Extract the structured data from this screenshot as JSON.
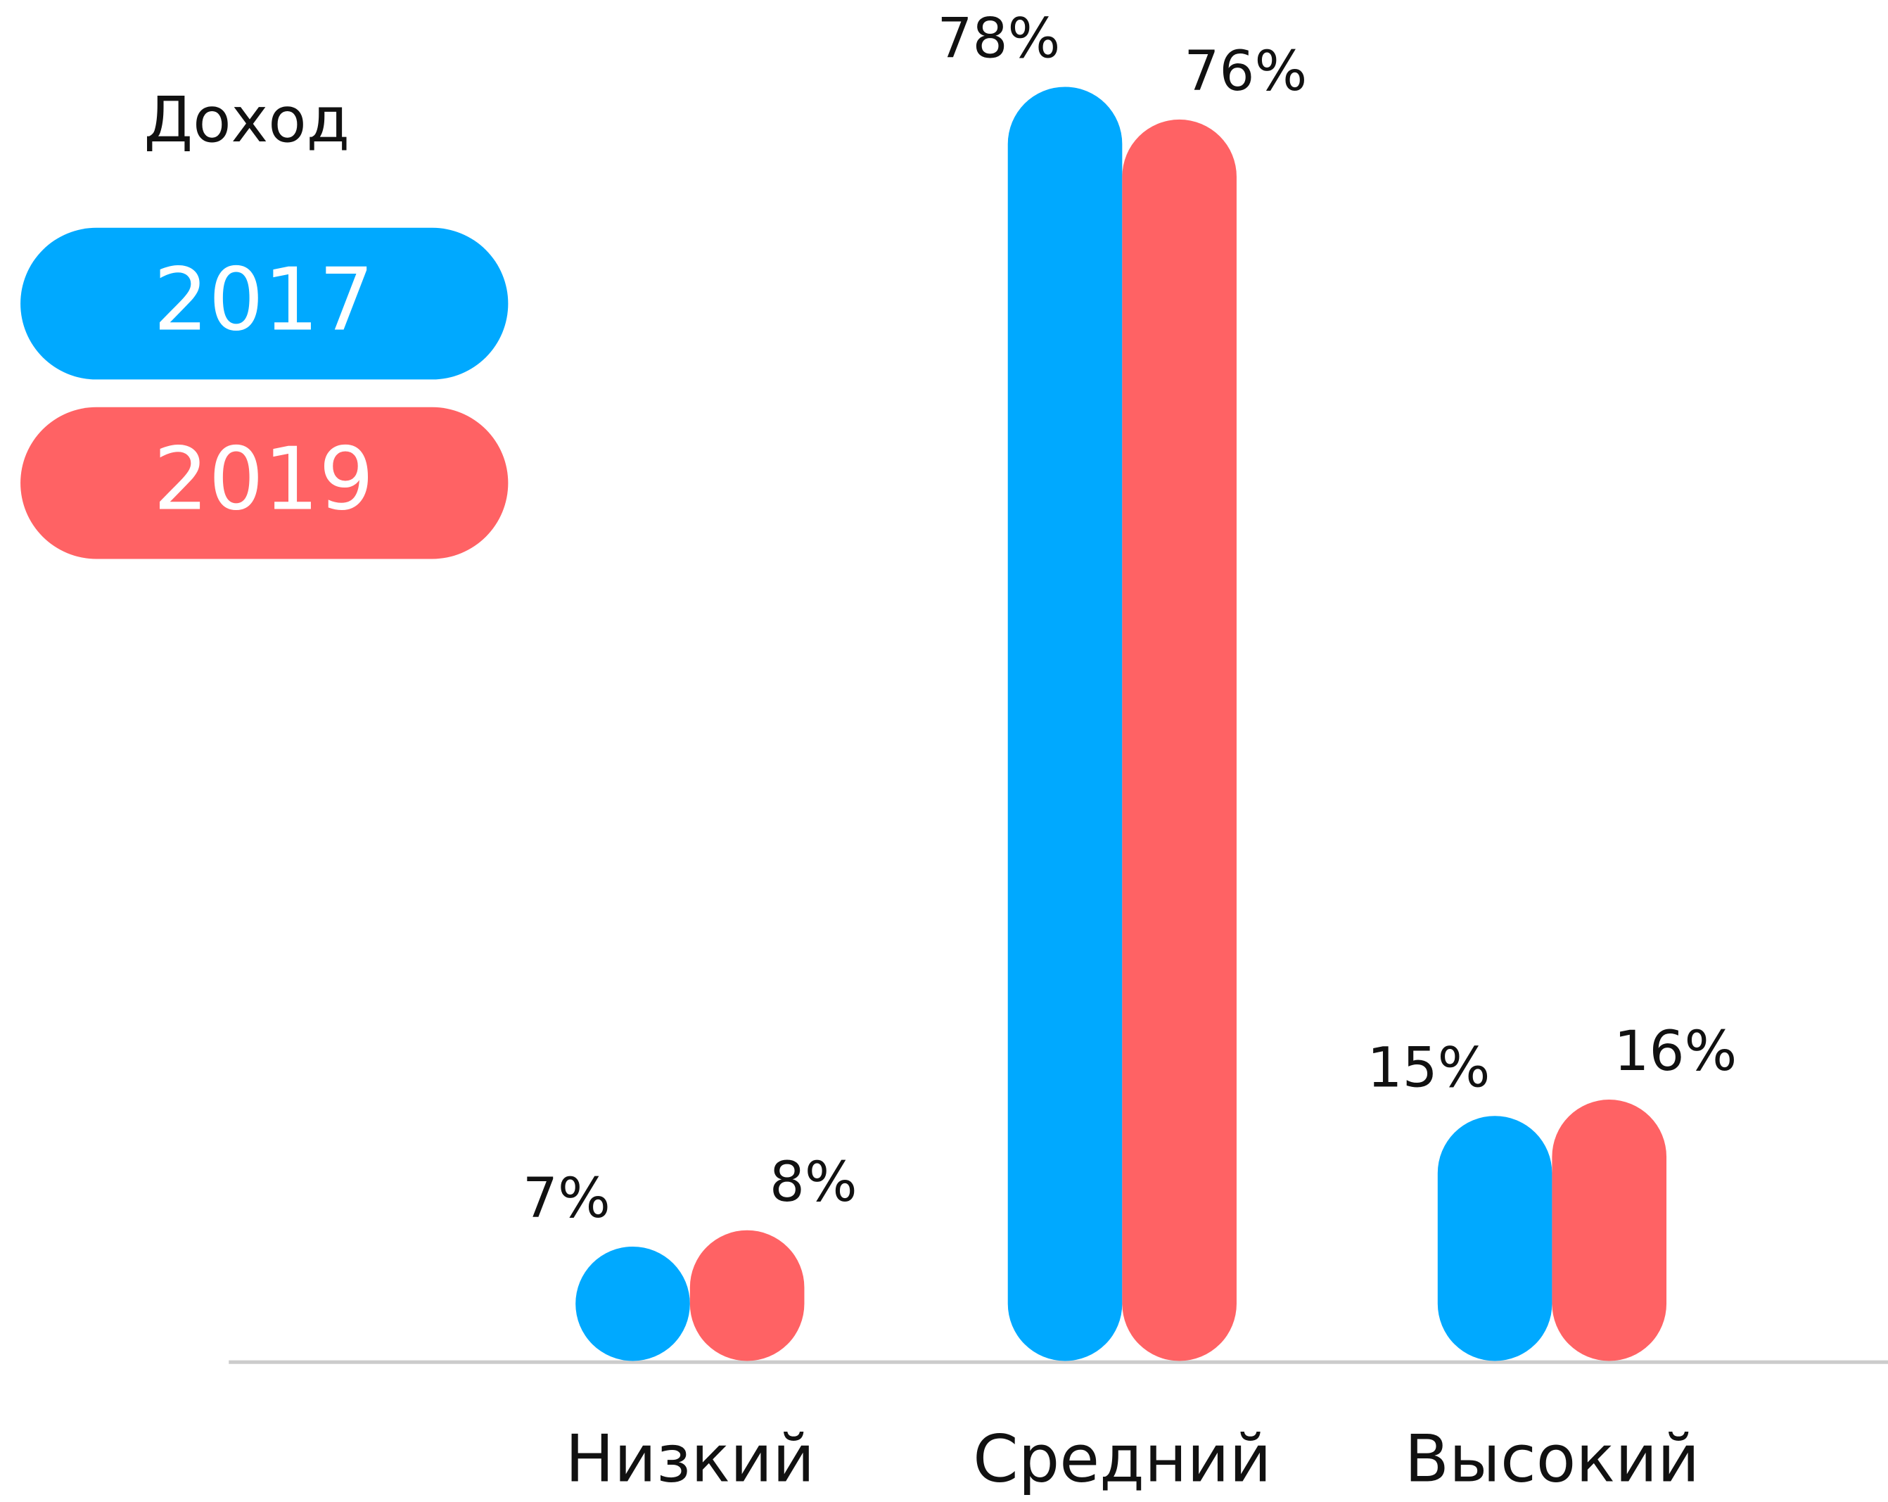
{
  "chart_data": {
    "type": "bar",
    "legend_title": "Доход",
    "categories": [
      "Низкий",
      "Средний",
      "Высокий"
    ],
    "series": [
      {
        "name": "2017",
        "color": "#00a9ff",
        "values": [
          7,
          78,
          15
        ],
        "value_labels": [
          "7%",
          "78%",
          "15%"
        ]
      },
      {
        "name": "2019",
        "color": "#ff6264",
        "values": [
          8,
          76,
          16
        ],
        "value_labels": [
          "8%",
          "76%",
          "16%"
        ]
      }
    ],
    "legend": "upper left"
  }
}
